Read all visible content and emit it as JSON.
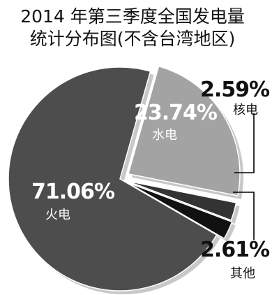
{
  "chart_data": {
    "type": "pie",
    "title_lines": [
      "2014 年第三季度全国发电量",
      "统计分布图(不含台湾地区)"
    ],
    "slices": [
      {
        "label": "火电",
        "value": 71.06,
        "value_label": "71.06%",
        "color": "#4d4d4d",
        "text_color": "#ffffff"
      },
      {
        "label": "水电",
        "value": 23.74,
        "value_label": "23.74%",
        "color": "#a3a3a3",
        "text_color": "#ffffff"
      },
      {
        "label": "核电",
        "value": 2.59,
        "value_label": "2.59%",
        "color": "#333333",
        "text_color": "#111111"
      },
      {
        "label": "其他",
        "value": 2.61,
        "value_label": "2.61%",
        "color": "#111111",
        "text_color": "#111111"
      }
    ],
    "legend": "none",
    "exploded": true
  }
}
